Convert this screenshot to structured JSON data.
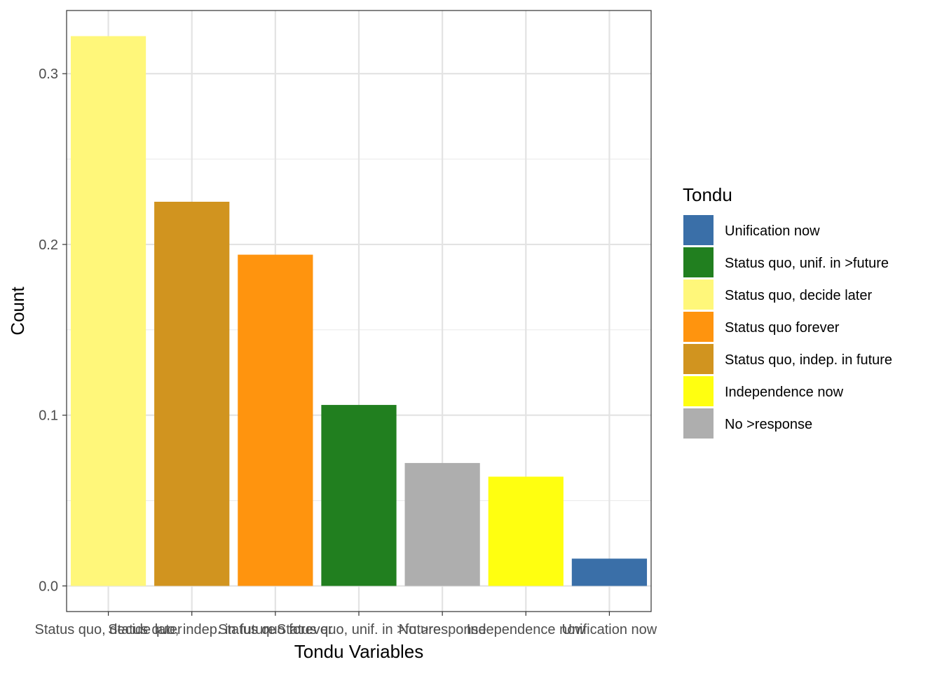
{
  "chart_data": {
    "type": "bar",
    "categories": [
      "Status quo, decide later",
      "Status quo, indep. in future",
      "Status quo forever",
      "Status quo, unif. in >future",
      "No >response",
      "Independence now",
      "Unification now"
    ],
    "values": [
      0.322,
      0.225,
      0.194,
      0.106,
      0.072,
      0.064,
      0.016
    ],
    "bar_colors": [
      "#FFF77A",
      "#D1941F",
      "#FF940E",
      "#217F1F",
      "#AEAEAE",
      "#FFFF10",
      "#3A6FA8"
    ],
    "xlabel": "Tondu Variables",
    "ylabel": "Count",
    "ylim": [
      -0.015,
      0.337
    ],
    "yticks": [
      0.0,
      0.1,
      0.2,
      0.3
    ],
    "ytick_labels": [
      "0.0",
      "0.1",
      "0.2",
      "0.3"
    ],
    "grid": true,
    "legend": {
      "title": "Tondu",
      "position": "right",
      "entries": [
        {
          "label": "Unification now",
          "color": "#3A6FA8"
        },
        {
          "label": "Status quo, unif. in >future",
          "color": "#217F1F"
        },
        {
          "label": "Status quo, decide later",
          "color": "#FFF77A"
        },
        {
          "label": "Status quo forever",
          "color": "#FF940E"
        },
        {
          "label": "Status quo, indep. in future",
          "color": "#D1941F"
        },
        {
          "label": "Independence now",
          "color": "#FFFF10"
        },
        {
          "label": "No >response",
          "color": "#AEAEAE"
        }
      ]
    }
  }
}
